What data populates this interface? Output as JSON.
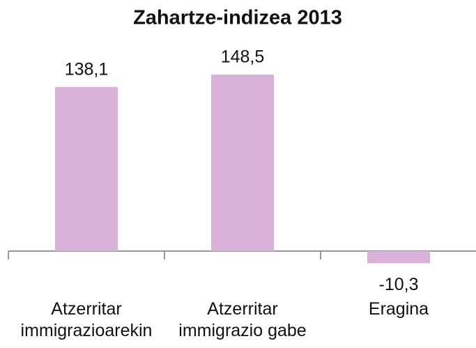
{
  "chart_data": {
    "type": "bar",
    "title": "Zahartze-indizea 2013",
    "categories": [
      "Atzerritar immigrazioarekin",
      "Atzerritar immigrazio gabe",
      "Eragina"
    ],
    "values": [
      138.1,
      148.5,
      -10.3
    ],
    "value_labels": [
      "138,1",
      "148,5",
      "-10,3"
    ],
    "color": "#d7b1d7"
  }
}
